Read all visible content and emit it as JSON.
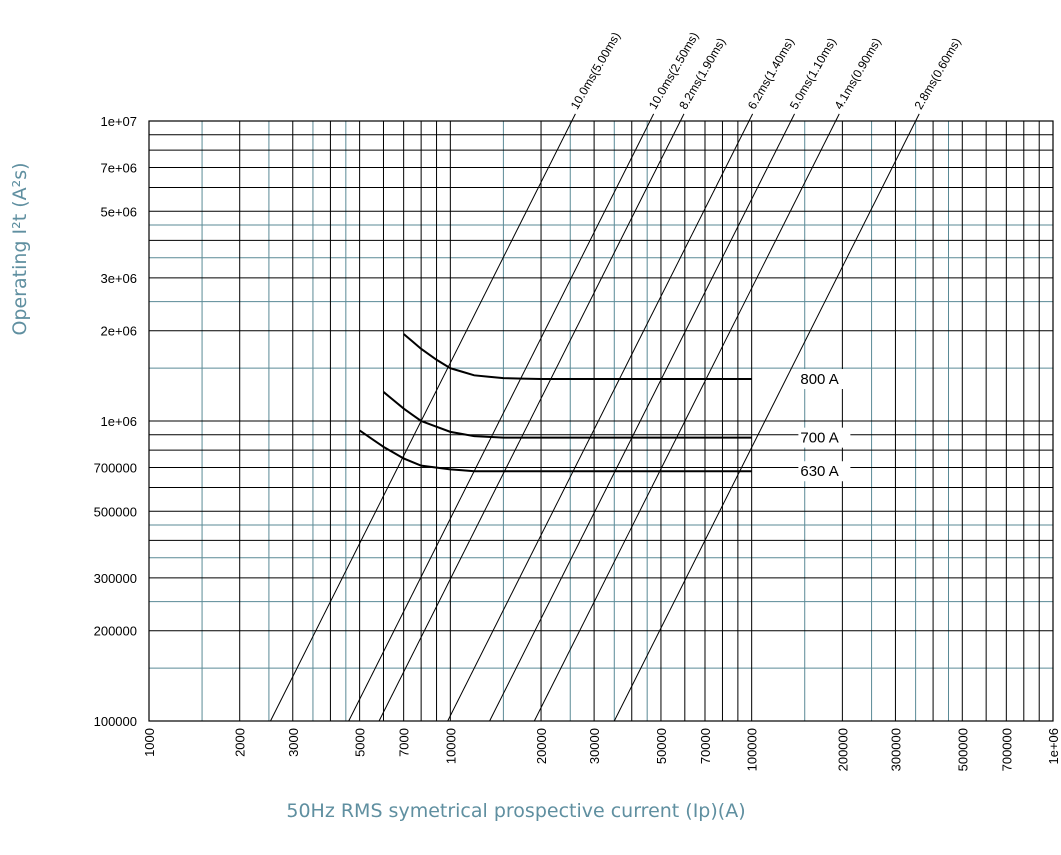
{
  "chart_data": {
    "type": "line",
    "xlabel": "50Hz RMS symetrical prospective current (Ip)(A)",
    "ylabel": "Operating I²t (A²s)",
    "x_scale": "log",
    "y_scale": "log",
    "xlim": [
      1000,
      1000000
    ],
    "ylim": [
      100000,
      10000000
    ],
    "grid": true,
    "x_tick_labels": [
      {
        "value": 1000,
        "label": "1000"
      },
      {
        "value": 2000,
        "label": "2000"
      },
      {
        "value": 3000,
        "label": "3000"
      },
      {
        "value": 5000,
        "label": "5000"
      },
      {
        "value": 7000,
        "label": "7000"
      },
      {
        "value": 10000,
        "label": "10000"
      },
      {
        "value": 20000,
        "label": "20000"
      },
      {
        "value": 30000,
        "label": "30000"
      },
      {
        "value": 50000,
        "label": "50000"
      },
      {
        "value": 70000,
        "label": "70000"
      },
      {
        "value": 100000,
        "label": "100000"
      },
      {
        "value": 200000,
        "label": "200000"
      },
      {
        "value": 300000,
        "label": "300000"
      },
      {
        "value": 500000,
        "label": "500000"
      },
      {
        "value": 700000,
        "label": "700000"
      },
      {
        "value": 1000000,
        "label": "1e+06"
      }
    ],
    "y_tick_labels": [
      {
        "value": 10000000,
        "label": "1e+07"
      },
      {
        "value": 7000000,
        "label": "7e+06"
      },
      {
        "value": 5000000,
        "label": "5e+06"
      },
      {
        "value": 3000000,
        "label": "3e+06"
      },
      {
        "value": 2000000,
        "label": "2e+06"
      },
      {
        "value": 1000000,
        "label": "1e+06"
      },
      {
        "value": 700000,
        "label": "700000"
      },
      {
        "value": 500000,
        "label": "500000"
      },
      {
        "value": 300000,
        "label": "300000"
      },
      {
        "value": 200000,
        "label": "200000"
      },
      {
        "value": 100000,
        "label": "100000"
      }
    ],
    "x_gridlines_teal": [
      1500,
      2500,
      3500,
      4500,
      15000,
      25000,
      35000,
      45000,
      150000,
      250000,
      350000,
      450000
    ],
    "y_gridlines_teal": [
      1500000,
      2500000,
      3500000,
      4500000,
      150000,
      250000,
      350000,
      450000
    ],
    "x_gridlines_black": [
      2000,
      3000,
      4000,
      5000,
      6000,
      7000,
      8000,
      9000,
      10000,
      20000,
      30000,
      40000,
      50000,
      60000,
      70000,
      80000,
      90000,
      100000,
      200000,
      300000,
      400000,
      500000,
      600000,
      700000,
      800000,
      900000
    ],
    "y_gridlines_black": [
      2000000,
      3000000,
      4000000,
      5000000,
      6000000,
      7000000,
      8000000,
      9000000,
      200000,
      300000,
      400000,
      500000,
      600000,
      700000,
      800000,
      900000,
      1000000
    ],
    "grid_colors": {
      "major": "#000000",
      "minor": "#5a8a96"
    },
    "series": [
      {
        "name": "800 A",
        "points": [
          [
            7000,
            1950000
          ],
          [
            8000,
            1740000
          ],
          [
            9000,
            1600000
          ],
          [
            10000,
            1500000
          ],
          [
            12000,
            1420000
          ],
          [
            15000,
            1390000
          ],
          [
            20000,
            1380000
          ],
          [
            100000,
            1380000
          ]
        ]
      },
      {
        "name": "700 A",
        "points": [
          [
            6000,
            1250000
          ],
          [
            7000,
            1100000
          ],
          [
            8000,
            1000000
          ],
          [
            10000,
            920000
          ],
          [
            12000,
            890000
          ],
          [
            15000,
            880000
          ],
          [
            20000,
            880000
          ],
          [
            100000,
            880000
          ]
        ]
      },
      {
        "name": "630 A",
        "points": [
          [
            5000,
            930000
          ],
          [
            6000,
            820000
          ],
          [
            7000,
            750000
          ],
          [
            8000,
            710000
          ],
          [
            10000,
            690000
          ],
          [
            12000,
            680000
          ],
          [
            15000,
            680000
          ],
          [
            100000,
            680000
          ]
        ]
      }
    ],
    "clearing_time_lines": [
      {
        "label": "10.0ms(5.00ms)",
        "x_at_ymin": 2530,
        "x_at_ymax": 25300
      },
      {
        "label": "10.0ms(2.50ms)",
        "x_at_ymin": 4600,
        "x_at_ymax": 46000
      },
      {
        "label": "8.2ms(1.90ms)",
        "x_at_ymin": 5800,
        "x_at_ymax": 58000
      },
      {
        "label": "6.2ms(1.40ms)",
        "x_at_ymin": 9800,
        "x_at_ymax": 98000
      },
      {
        "label": "5.0ms(1.10ms)",
        "x_at_ymin": 13500,
        "x_at_ymax": 135000
      },
      {
        "label": "4.1ms(0.90ms)",
        "x_at_ymin": 19000,
        "x_at_ymax": 190000
      },
      {
        "label": "2.8ms(0.60ms)",
        "x_at_ymin": 35000,
        "x_at_ymax": 350000
      }
    ],
    "rating_labels": [
      "800 A",
      "700 A",
      "630 A"
    ]
  }
}
